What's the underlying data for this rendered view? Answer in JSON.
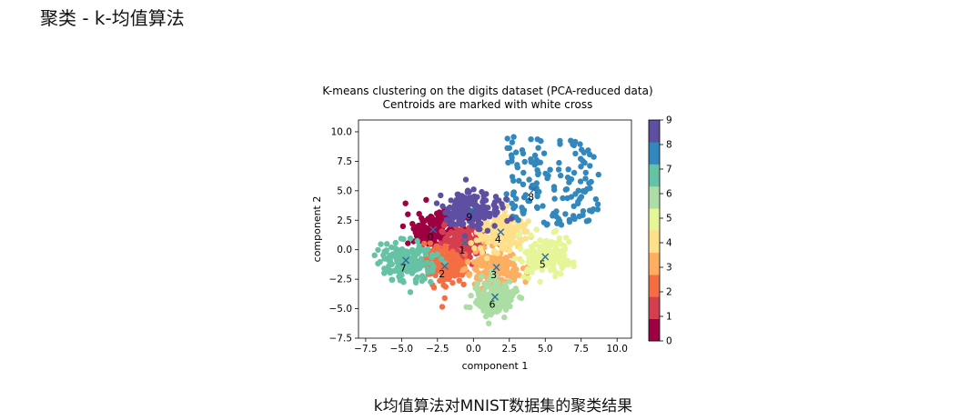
{
  "section_title": "聚类 - k-均值算法",
  "caption": "k均值算法对MNIST数据集的聚类结果",
  "chart_data": {
    "type": "scatter",
    "title": "K-means clustering on the digits dataset (PCA-reduced data)",
    "subtitle": "Centroids are marked with white cross",
    "xlabel": "component 1",
    "ylabel": "component 2",
    "xlim": [
      -8.0,
      11.0
    ],
    "ylim": [
      -7.5,
      11.0
    ],
    "x_ticks": [
      -7.5,
      -5.0,
      -2.5,
      0.0,
      2.5,
      5.0,
      7.5,
      10.0
    ],
    "x_tick_labels": [
      "−7.5",
      "−5.0",
      "−2.5",
      "0.0",
      "2.5",
      "5.0",
      "7.5",
      "10.0"
    ],
    "y_ticks": [
      -7.5,
      -5.0,
      -2.5,
      0.0,
      2.5,
      5.0,
      7.5,
      10.0
    ],
    "y_tick_labels": [
      "−7.5",
      "−5.0",
      "−2.5",
      "0.0",
      "2.5",
      "5.0",
      "7.5",
      "10.0"
    ],
    "grid": false,
    "colorbar": {
      "ticks": [
        0,
        1,
        2,
        3,
        4,
        5,
        6,
        7,
        8,
        9
      ],
      "labels": [
        "0",
        "1",
        "2",
        "3",
        "4",
        "5",
        "6",
        "7",
        "8",
        "9"
      ],
      "colors": [
        "#9e0142",
        "#d53e4f",
        "#f46d43",
        "#fdae61",
        "#fee08b",
        "#e6f598",
        "#abdda4",
        "#66c2a5",
        "#3288bd",
        "#5e4fa2"
      ]
    },
    "clusters": [
      {
        "label": "0",
        "centroid": [
          -2.8,
          1.7
        ],
        "spread": [
          1.1,
          0.9
        ],
        "color": "#9e0142"
      },
      {
        "label": "1",
        "centroid": [
          -0.6,
          0.6
        ],
        "spread": [
          0.9,
          0.9
        ],
        "color": "#d53e4f"
      },
      {
        "label": "2",
        "centroid": [
          -2.0,
          -1.4
        ],
        "spread": [
          0.9,
          1.0
        ],
        "color": "#f46d43"
      },
      {
        "label": "3",
        "centroid": [
          1.6,
          -1.5
        ],
        "spread": [
          1.1,
          0.9
        ],
        "color": "#fdae61"
      },
      {
        "label": "4",
        "centroid": [
          1.9,
          1.5
        ],
        "spread": [
          1.0,
          1.0
        ],
        "color": "#fee08b"
      },
      {
        "label": "5",
        "centroid": [
          5.0,
          -0.6
        ],
        "spread": [
          1.1,
          0.9
        ],
        "color": "#e6f598"
      },
      {
        "label": "6",
        "centroid": [
          1.5,
          -4.0
        ],
        "spread": [
          0.8,
          0.9
        ],
        "color": "#abdda4"
      },
      {
        "label": "7",
        "centroid": [
          -4.7,
          -0.9
        ],
        "spread": [
          1.1,
          1.0
        ],
        "color": "#66c2a5"
      },
      {
        "label": "8",
        "centroid": [
          4.2,
          5.1
        ],
        "spread": [
          1.6,
          1.5
        ],
        "color": "#3288bd"
      },
      {
        "label": "9",
        "centroid": [
          -0.1,
          3.4
        ],
        "spread": [
          1.1,
          0.9
        ],
        "color": "#5e4fa2"
      }
    ]
  }
}
